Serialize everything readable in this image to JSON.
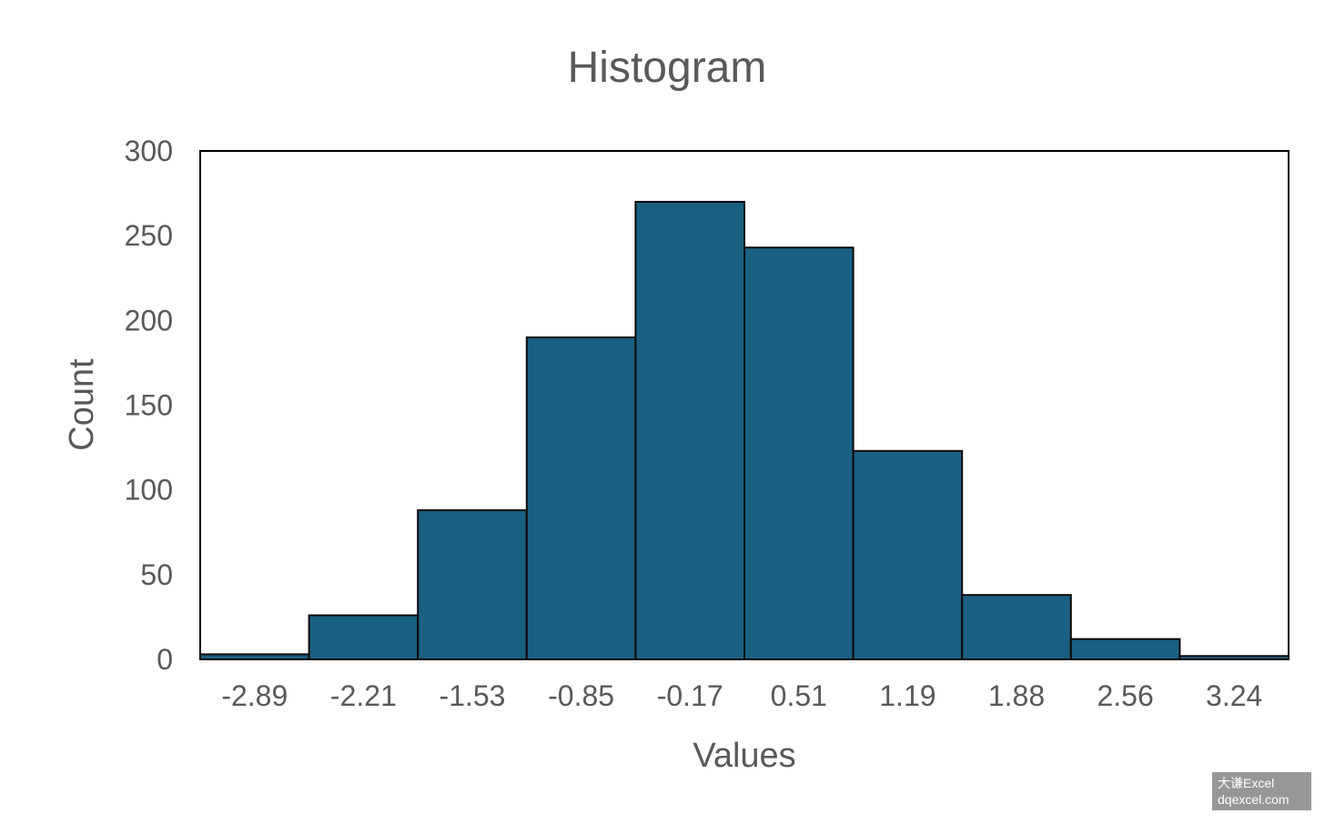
{
  "chart_data": {
    "type": "bar",
    "title": "Histogram",
    "xlabel": "Values",
    "ylabel": "Count",
    "categories": [
      "-2.89",
      "-2.21",
      "-1.53",
      "-0.85",
      "-0.17",
      "0.51",
      "1.19",
      "1.88",
      "2.56",
      "3.24"
    ],
    "values": [
      3,
      26,
      88,
      190,
      270,
      243,
      123,
      38,
      12,
      2
    ],
    "ylim": [
      0,
      300
    ],
    "yticks": [
      "0",
      "50",
      "100",
      "150",
      "200",
      "250",
      "300"
    ],
    "grid": false,
    "legend": "none",
    "bar_color": "#1a6082",
    "edge_color": "#0a0a0a"
  },
  "watermark": {
    "line1": "大谦Excel",
    "line2": "dqexcel.com"
  }
}
